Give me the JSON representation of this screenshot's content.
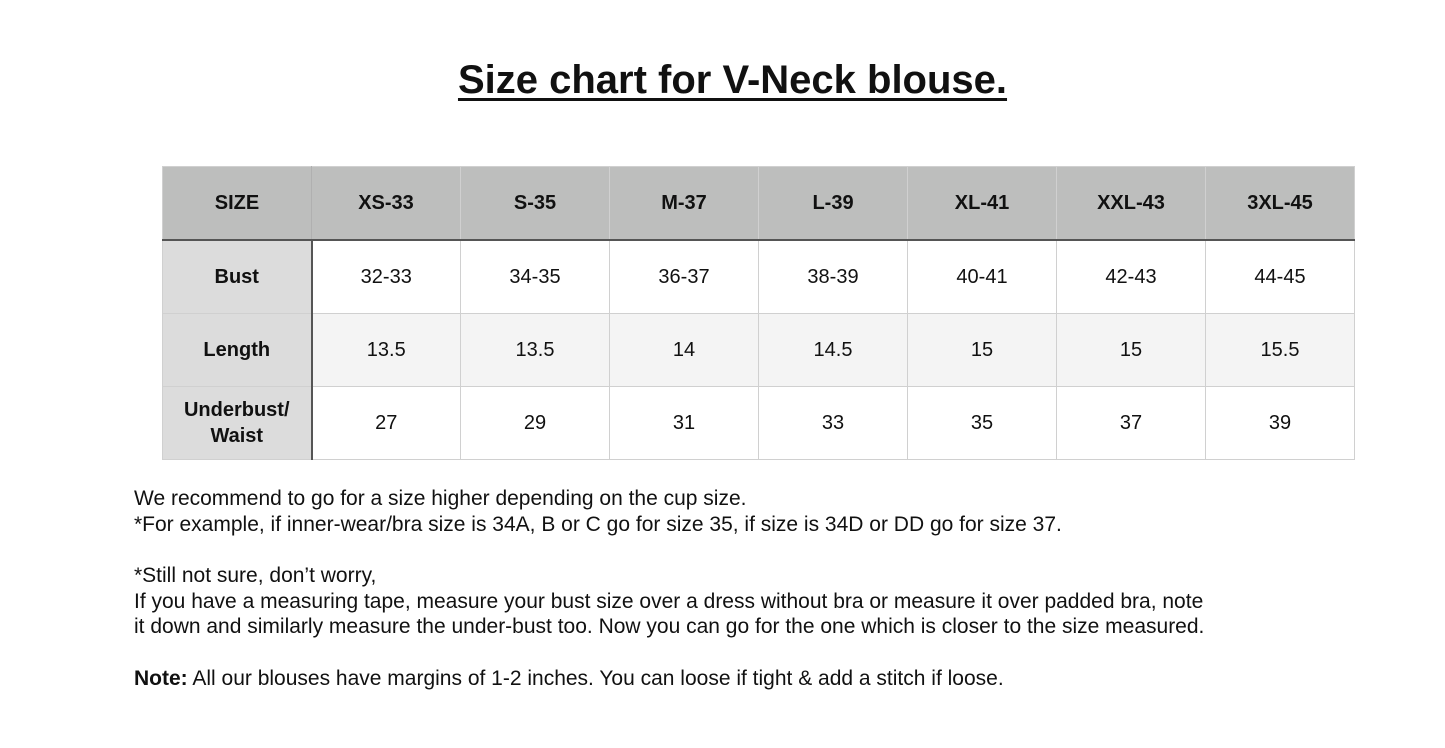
{
  "title": "Size chart for V-Neck blouse.",
  "table": {
    "headers": [
      "SIZE",
      "XS-33",
      "S-35",
      "M-37",
      "L-39",
      "XL-41",
      "XXL-43",
      "3XL-45"
    ],
    "rows": [
      {
        "label": "Bust",
        "values": [
          "32-33",
          "34-35",
          "36-37",
          "38-39",
          "40-41",
          "42-43",
          "44-45"
        ]
      },
      {
        "label": "Length",
        "values": [
          "13.5",
          "13.5",
          "14",
          "14.5",
          "15",
          "15",
          "15.5"
        ]
      },
      {
        "label_line1": "Underbust/",
        "label_line2": "Waist",
        "values": [
          "27",
          "29",
          "31",
          "33",
          "35",
          "37",
          "39"
        ]
      }
    ]
  },
  "notes": {
    "recommend": "We recommend to go for a size higher depending on the cup size.",
    "example": "*For example, if inner-wear/bra size is 34A, B or C go for size 35, if size is 34D or DD go for size 37.",
    "still_not_sure": "*Still not sure, don’t worry,",
    "measure_line1": "If you have a measuring tape, measure your bust size over a dress without bra or measure it over padded bra, note",
    "measure_line2": "it down and similarly measure the under-bust too. Now you can go for the one which is closer to the size measured.",
    "note_label": "Note:",
    "note_text": " All our blouses have margins of 1-2 inches. You can loose if tight & add a stitch if loose."
  }
}
